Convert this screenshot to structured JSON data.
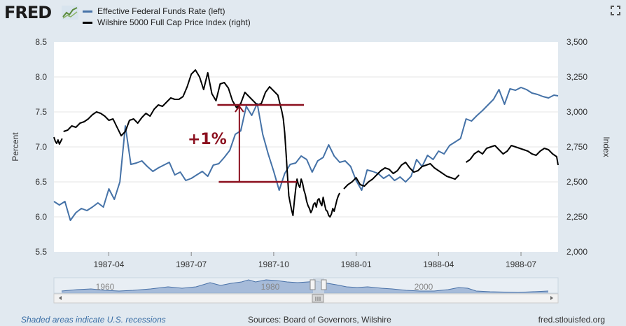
{
  "header": {
    "logo_text": "FRED",
    "fullscreen_icon": "expand-icon"
  },
  "colors": {
    "fedfunds": "#4572a7",
    "wilshire": "#000000",
    "annotation": "#8b0f1e",
    "navigator_fill": "#6f91c2"
  },
  "chart_data": {
    "type": "line",
    "title": "",
    "legend": [
      {
        "name": "Effective Federal Funds Rate (left)",
        "color": "#4572a7"
      },
      {
        "name": "Wilshire 5000 Full Cap Price Index (right)",
        "color": "#000000"
      }
    ],
    "x_tick_labels": [
      "1987-04",
      "1987-07",
      "1987-10",
      "1988-01",
      "1988-04",
      "1988-07"
    ],
    "x_tick_months": [
      3,
      6,
      9,
      12,
      15,
      18
    ],
    "x_range_months": [
      1,
      19.35
    ],
    "ylabel_left": "Percent",
    "ylabel_right": "Index",
    "ylim_left": [
      5.5,
      8.5
    ],
    "ylim_right": [
      2000,
      3500
    ],
    "yticks_left": [
      "5.5",
      "6.0",
      "6.5",
      "7.0",
      "7.5",
      "8.0",
      "8.5"
    ],
    "yticks_right": [
      "2,000",
      "2,250",
      "2,500",
      "2,750",
      "3,000",
      "3,250",
      "3,500"
    ],
    "series": [
      {
        "name": "Effective Federal Funds Rate (left)",
        "axis": "left",
        "x": [
          1.0,
          1.2,
          1.4,
          1.6,
          1.8,
          2.0,
          2.2,
          2.4,
          2.6,
          2.8,
          3.0,
          3.2,
          3.4,
          3.6,
          3.8,
          4.0,
          4.2,
          4.4,
          4.6,
          4.8,
          5.0,
          5.2,
          5.4,
          5.6,
          5.8,
          6.0,
          6.2,
          6.4,
          6.6,
          6.8,
          7.0,
          7.2,
          7.4,
          7.6,
          7.8,
          8.0,
          8.2,
          8.4,
          8.6,
          8.8,
          9.0,
          9.2,
          9.4,
          9.6,
          9.8,
          10.0,
          10.2,
          10.4,
          10.6,
          10.8,
          11.0,
          11.2,
          11.4,
          11.6,
          11.8,
          12.0,
          12.2,
          12.4,
          12.6,
          12.8,
          13.0,
          13.2,
          13.4,
          13.6,
          13.8,
          14.0,
          14.2,
          14.4,
          14.6,
          14.8,
          15.0,
          15.2,
          15.4,
          15.6,
          15.8,
          16.0,
          16.2,
          16.4,
          16.6,
          16.8,
          17.0,
          17.2,
          17.4,
          17.6,
          17.8,
          18.0,
          18.2,
          18.4,
          18.6,
          18.8,
          19.0,
          19.2,
          19.35
        ],
        "values": [
          6.22,
          6.17,
          6.22,
          5.95,
          6.06,
          6.12,
          6.09,
          6.14,
          6.2,
          6.14,
          6.4,
          6.25,
          6.5,
          7.3,
          6.75,
          6.77,
          6.8,
          6.72,
          6.65,
          6.7,
          6.74,
          6.78,
          6.6,
          6.64,
          6.52,
          6.55,
          6.6,
          6.65,
          6.58,
          6.74,
          6.76,
          6.85,
          6.95,
          7.18,
          7.23,
          7.58,
          7.45,
          7.62,
          7.18,
          6.9,
          6.65,
          6.38,
          6.62,
          6.75,
          6.77,
          6.87,
          6.82,
          6.64,
          6.8,
          6.85,
          7.03,
          6.87,
          6.78,
          6.8,
          6.72,
          6.52,
          6.38,
          6.67,
          6.65,
          6.62,
          6.55,
          6.6,
          6.52,
          6.57,
          6.5,
          6.58,
          6.82,
          6.72,
          6.88,
          6.82,
          6.94,
          6.9,
          7.02,
          7.07,
          7.12,
          7.4,
          7.37,
          7.45,
          7.52,
          7.6,
          7.68,
          7.82,
          7.61,
          7.83,
          7.81,
          7.85,
          7.82,
          7.77,
          7.75,
          7.72,
          7.7,
          7.74,
          7.73
        ]
      },
      {
        "name": "Wilshire 5000 Full Cap Price Index (right)",
        "axis": "right",
        "segments": [
          {
            "x": [
              1.0,
              1.05,
              1.1,
              1.15,
              1.2,
              1.25,
              1.3
            ],
            "values": [
              2820,
              2790,
              2775,
              2800,
              2770,
              2790,
              2810
            ]
          },
          {
            "x": [
              1.35,
              1.5,
              1.65,
              1.8,
              1.95,
              2.1,
              2.25,
              2.4,
              2.55,
              2.7,
              2.85,
              3.0,
              3.15,
              3.3,
              3.45,
              3.6,
              3.75,
              3.9,
              4.05,
              4.2,
              4.35,
              4.5,
              4.65,
              4.8,
              4.95,
              5.1,
              5.25,
              5.4,
              5.55,
              5.7,
              5.85,
              6.0,
              6.15,
              6.3,
              6.45,
              6.6,
              6.75,
              6.9,
              7.05,
              7.2,
              7.35,
              7.5,
              7.65,
              7.8,
              7.95,
              8.1,
              8.25,
              8.4,
              8.55,
              8.7,
              8.85,
              9.0,
              9.15,
              9.3,
              9.35,
              9.4,
              9.45,
              9.5,
              9.55,
              9.6,
              9.65,
              9.7,
              9.75,
              9.8,
              9.85,
              9.9,
              9.95,
              10.0,
              10.05,
              10.1,
              10.15,
              10.2,
              10.25,
              10.3,
              10.35,
              10.4,
              10.45,
              10.5,
              10.55,
              10.6,
              10.65,
              10.7,
              10.75,
              10.8,
              10.85,
              10.9,
              10.95,
              11.0,
              11.05,
              11.1,
              11.15,
              11.2,
              11.25,
              11.3,
              11.35,
              11.4
            ],
            "values": [
              2860,
              2870,
              2900,
              2890,
              2920,
              2930,
              2950,
              2980,
              3000,
              2990,
              2970,
              2940,
              2950,
              2890,
              2830,
              2860,
              2940,
              2950,
              2920,
              2960,
              2990,
              2970,
              3020,
              3050,
              3040,
              3070,
              3100,
              3090,
              3090,
              3110,
              3180,
              3270,
              3300,
              3250,
              3160,
              3280,
              3130,
              3080,
              3200,
              3210,
              3170,
              3080,
              3030,
              3060,
              3140,
              3110,
              3080,
              3050,
              3060,
              3140,
              3180,
              3150,
              3120,
              3000,
              2950,
              2850,
              2700,
              2550,
              2400,
              2350,
              2300,
              2260,
              2360,
              2450,
              2520,
              2480,
              2460,
              2520,
              2490,
              2440,
              2410,
              2360,
              2330,
              2310,
              2280,
              2300,
              2340,
              2350,
              2320,
              2370,
              2380,
              2350,
              2330,
              2390,
              2340,
              2300,
              2290,
              2260,
              2250,
              2270,
              2310,
              2290,
              2330,
              2370,
              2400,
              2420
            ]
          },
          {
            "x": [
              11.55,
              11.7,
              11.85,
              12.0,
              12.15,
              12.3,
              12.45,
              12.6,
              12.75,
              12.9,
              13.05,
              13.2,
              13.35,
              13.5,
              13.65,
              13.8,
              13.95,
              14.1,
              14.25,
              14.4,
              14.55,
              14.7,
              14.85,
              15.0,
              15.15,
              15.3,
              15.45,
              15.6,
              15.75
            ],
            "values": [
              2450,
              2480,
              2500,
              2530,
              2480,
              2470,
              2500,
              2520,
              2550,
              2580,
              2600,
              2590,
              2560,
              2580,
              2620,
              2640,
              2600,
              2570,
              2580,
              2610,
              2620,
              2630,
              2600,
              2580,
              2560,
              2540,
              2530,
              2520,
              2550
            ]
          },
          {
            "x": [
              16.0,
              16.15,
              16.3,
              16.45,
              16.6,
              16.75,
              16.9,
              17.05,
              17.2,
              17.35,
              17.5,
              17.65,
              17.8,
              17.95,
              18.1,
              18.25,
              18.4,
              18.55,
              18.7,
              18.85,
              19.0,
              19.15,
              19.3,
              19.35
            ],
            "values": [
              2640,
              2660,
              2700,
              2720,
              2700,
              2740,
              2750,
              2760,
              2730,
              2700,
              2720,
              2760,
              2750,
              2740,
              2730,
              2720,
              2700,
              2690,
              2720,
              2740,
              2730,
              2700,
              2680,
              2620
            ]
          }
        ]
      }
    ],
    "annotation": {
      "text": "+1%",
      "low_rate": 6.5,
      "high_rate": 7.6,
      "low_start_month": 7.0,
      "low_end_month": 9.85,
      "high_start_month": 6.95,
      "high_end_month": 10.1,
      "arrow_month": 7.75
    },
    "navigator": {
      "tick_labels": [
        "1960",
        "1980",
        "2000"
      ]
    }
  },
  "footer": {
    "recession_note": "Shaded areas indicate U.S. recessions",
    "sources": "Sources: Board of Governors, Wilshire",
    "site": "fred.stlouisfed.org"
  }
}
